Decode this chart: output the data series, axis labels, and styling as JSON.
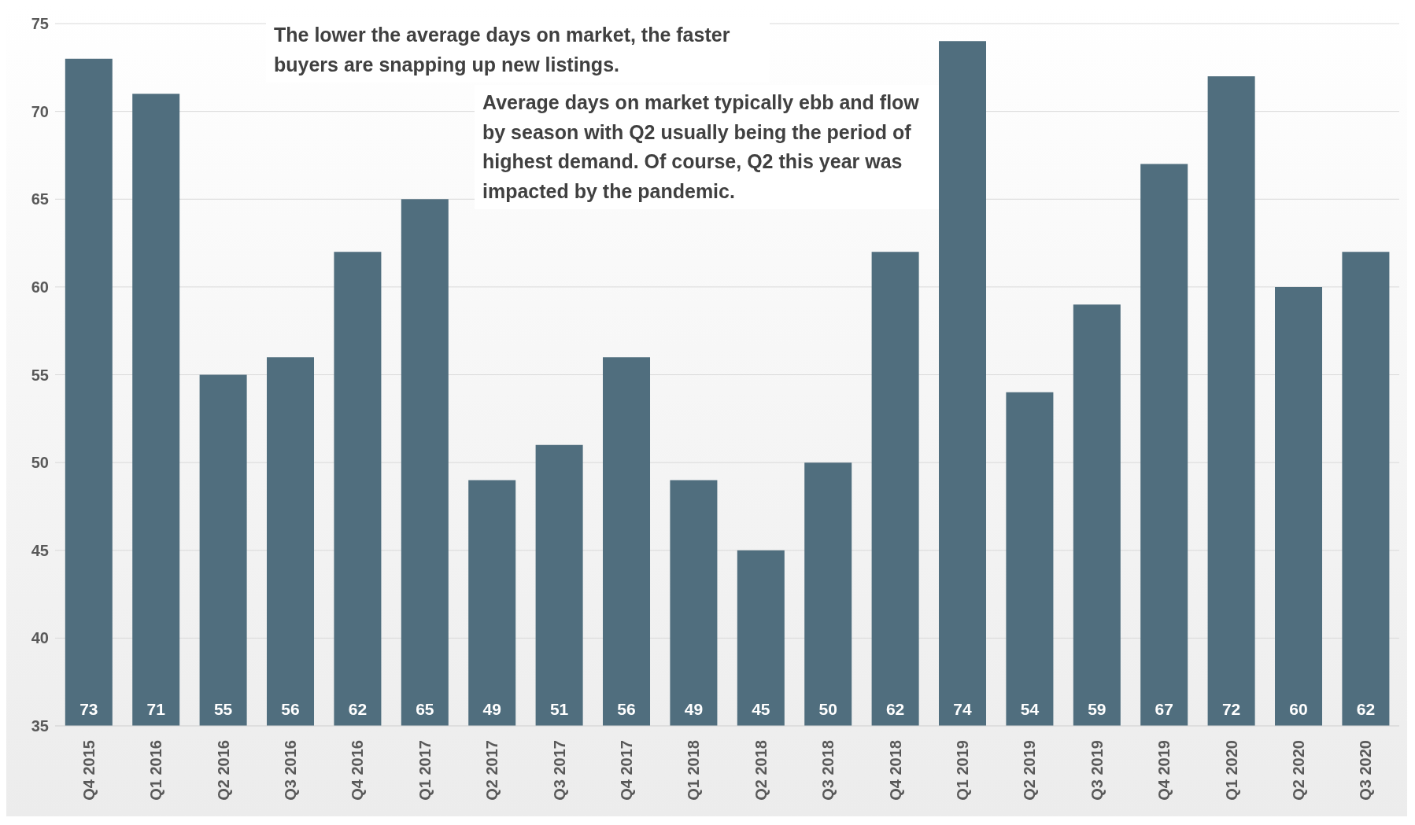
{
  "chart_data": {
    "type": "bar",
    "categories": [
      "Q4 2015",
      "Q1 2016",
      "Q2 2016",
      "Q3 2016",
      "Q4 2016",
      "Q1 2017",
      "Q2 2017",
      "Q3 2017",
      "Q4 2017",
      "Q1 2018",
      "Q2 2018",
      "Q3 2018",
      "Q4 2018",
      "Q1 2019",
      "Q2 2019",
      "Q3 2019",
      "Q4 2019",
      "Q1 2020",
      "Q2 2020",
      "Q3 2020"
    ],
    "values": [
      73,
      71,
      55,
      56,
      62,
      65,
      49,
      51,
      56,
      49,
      45,
      50,
      62,
      74,
      54,
      59,
      67,
      72,
      60,
      62
    ],
    "color": "#506e7e",
    "ylim": [
      35,
      75
    ],
    "yticks": [
      35,
      40,
      45,
      50,
      55,
      60,
      65,
      70,
      75
    ],
    "grid": "y",
    "data_labels": true,
    "annotations": [
      "The lower the average days on market, the faster buyers are snapping up new listings.",
      "Average days on market typically ebb and flow by season with Q2 usually being the period of highest demand. Of course, Q2 this year was impacted by the pandemic."
    ]
  }
}
